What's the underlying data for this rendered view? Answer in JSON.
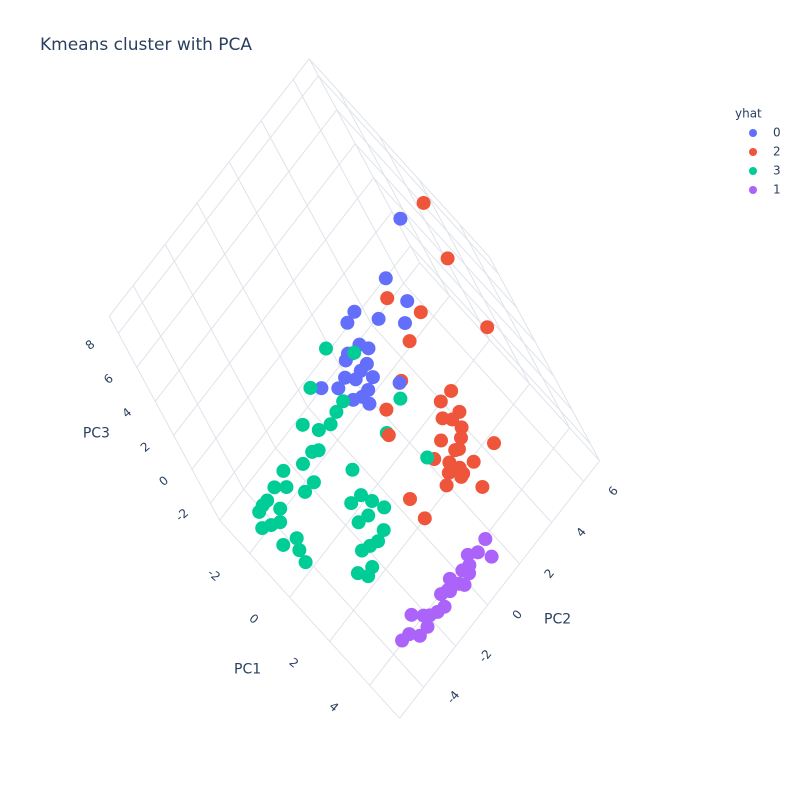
{
  "chart_data": {
    "type": "scatter3d",
    "title": "Kmeans cluster with PCA",
    "xlabel": "PC1",
    "ylabel": "PC2",
    "zlabel": "PC3",
    "xlim": [
      -3.5,
      5.5
    ],
    "ylim": [
      -5.5,
      7
    ],
    "zlim": [
      -3,
      9
    ],
    "xticks": [
      -2,
      0,
      2,
      4
    ],
    "yticks": [
      -4,
      -2,
      0,
      2,
      4,
      6
    ],
    "zticks": [
      -2,
      0,
      2,
      4,
      6,
      8
    ],
    "grid": true,
    "legend_title": "yhat",
    "legend_position": "top-right",
    "series": [
      {
        "name": "0",
        "color": "#636efa",
        "x": [
          1.1,
          1.35,
          1.8,
          0.6,
          1.1,
          1.9,
          0.34,
          -0.2,
          2.1,
          0.8,
          0.6,
          1.0,
          0.5,
          0.9,
          0.7,
          1.1,
          0.4,
          1.2,
          0.3,
          0.9,
          0.6,
          1.0,
          0.2,
          0.7
        ],
        "y": [
          5.8,
          4.0,
          4.2,
          2.4,
          3.0,
          3.65,
          2.0,
          -0.1,
          2.2,
          1.4,
          1.1,
          1.7,
          1.5,
          0.9,
          1.9,
          1.2,
          0.8,
          1.6,
          1.2,
          2.1,
          0.6,
          1.0,
          0.4,
          1.3
        ],
        "z": [
          7,
          6,
          5,
          5,
          4.5,
          4.5,
          4.5,
          2.5,
          3,
          3,
          2.6,
          3.3,
          3.5,
          2.2,
          3.8,
          2.5,
          2.8,
          2.9,
          3.2,
          3.6,
          2.0,
          1.8,
          2.4,
          4.0
        ]
      },
      {
        "name": "2",
        "color": "#ef553b",
        "x": [
          2.0,
          2.6,
          3.9,
          2.4,
          1.2,
          2.1,
          2.1,
          1.7,
          2.3,
          4.7,
          4.7,
          3.2,
          3.0,
          3.8,
          3.6,
          4.0,
          3.5,
          4.1,
          3.7,
          3.9,
          3.4,
          4.2,
          3.6,
          4.0,
          3.3,
          4.3,
          3.7,
          3.9,
          3.5,
          4.1,
          3.8
        ],
        "y": [
          6.7,
          6.3,
          6.0,
          4.3,
          3.7,
          3.4,
          2.3,
          1.3,
          0.7,
          2.4,
          3.7,
          0.1,
          0,
          2.4,
          2.0,
          2.8,
          1.8,
          3.0,
          2.6,
          2.2,
          1.5,
          3.2,
          2.9,
          2.5,
          1.6,
          2.7,
          2.1,
          3.4,
          2.3,
          2.0,
          2.9
        ],
        "z": [
          8,
          6,
          4,
          5,
          5,
          4,
          3,
          2,
          2,
          0,
          1,
          -1,
          0,
          1,
          0.5,
          1.5,
          0,
          2,
          2.5,
          0,
          -0.5,
          2.8,
          3,
          1.2,
          0.8,
          0.6,
          1.8,
          3.4,
          -0.3,
          0.3,
          2.2
        ]
      },
      {
        "name": "3",
        "color": "#00cc96",
        "x": [
          0,
          -0.2,
          3.2,
          2.15,
          2.2,
          0.3,
          -1.4,
          0.85,
          -0.8,
          -0.5,
          -1.1,
          -0.6,
          -1.0,
          -0.3,
          -0.9,
          -0.4,
          -0.2,
          -1.2,
          0.0,
          -0.7,
          2.3,
          2.0,
          2.6,
          2.1,
          2.5,
          1.8,
          2.7,
          2.2,
          2.4,
          1.9,
          2.6,
          2.0,
          -0.3,
          0.0,
          -0.5,
          0.2,
          -0.1,
          0.4,
          0.1,
          -0.6,
          0.3,
          0.6,
          1.5,
          1.2
        ],
        "y": [
          0.8,
          -0.5,
          1.4,
          1.9,
          0.7,
          -4.3,
          -4.5,
          1.5,
          -4.5,
          -4.2,
          -4.8,
          -3.9,
          -4.1,
          -4.6,
          -3.6,
          -3.3,
          -4.0,
          -4.3,
          -4.2,
          -3.0,
          -2.2,
          -2.5,
          -1.9,
          -1.6,
          -2.6,
          -2.0,
          -1.5,
          -1.2,
          -2.9,
          -1.4,
          -1.0,
          -3.1,
          -1.0,
          -1.5,
          -2.2,
          -0.6,
          -2.8,
          -0.2,
          -1.8,
          -1.4,
          -2.4,
          0.2,
          -1.8,
          -1.0
        ],
        "z": [
          4,
          3,
          1,
          2.5,
          2,
          -2,
          -1,
          4,
          -1,
          -0.8,
          -1.2,
          -0.5,
          -0.3,
          -1.4,
          0,
          0.3,
          -1.6,
          -0.6,
          -1.8,
          0.5,
          -1,
          -1.3,
          -0.7,
          -0.2,
          -1.5,
          -0.5,
          -0.4,
          0.3,
          -1.8,
          0.5,
          0.2,
          -1.9,
          1,
          0.8,
          0.2,
          1.5,
          -0.2,
          2,
          1.2,
          1.4,
          0.4,
          2.4,
          0,
          0.6
        ]
      },
      {
        "name": "1",
        "color": "#ab63fa",
        "x": [
          4.6,
          4.8,
          5.0,
          4.7,
          4.9,
          5.1,
          4.5,
          4.8,
          4.6,
          5.0,
          4.7,
          4.9,
          4.4,
          4.8,
          5.2,
          4.6,
          4.9,
          4.7,
          5.0,
          4.5,
          4.3,
          4.6
        ],
        "y": [
          -3.2,
          -2.9,
          -2.5,
          -2.1,
          -1.8,
          -1.5,
          -1.2,
          -0.9,
          -0.6,
          -0.3,
          0,
          0.3,
          0.6,
          0.9,
          1.2,
          1.5,
          -1.0,
          -0.4,
          0.1,
          -2.7,
          -3.5,
          -2.3
        ],
        "z": [
          -2.0,
          -2.2,
          -1.9,
          -2.1,
          -2.0,
          -1.8,
          -2.2,
          -2.0,
          -1.9,
          -2.1,
          -2.0,
          -1.8,
          -2.2,
          -1.9,
          -2.0,
          -2.1,
          -1.7,
          -2.3,
          -1.9,
          -1.6,
          -2.4,
          -2.0
        ]
      }
    ]
  }
}
